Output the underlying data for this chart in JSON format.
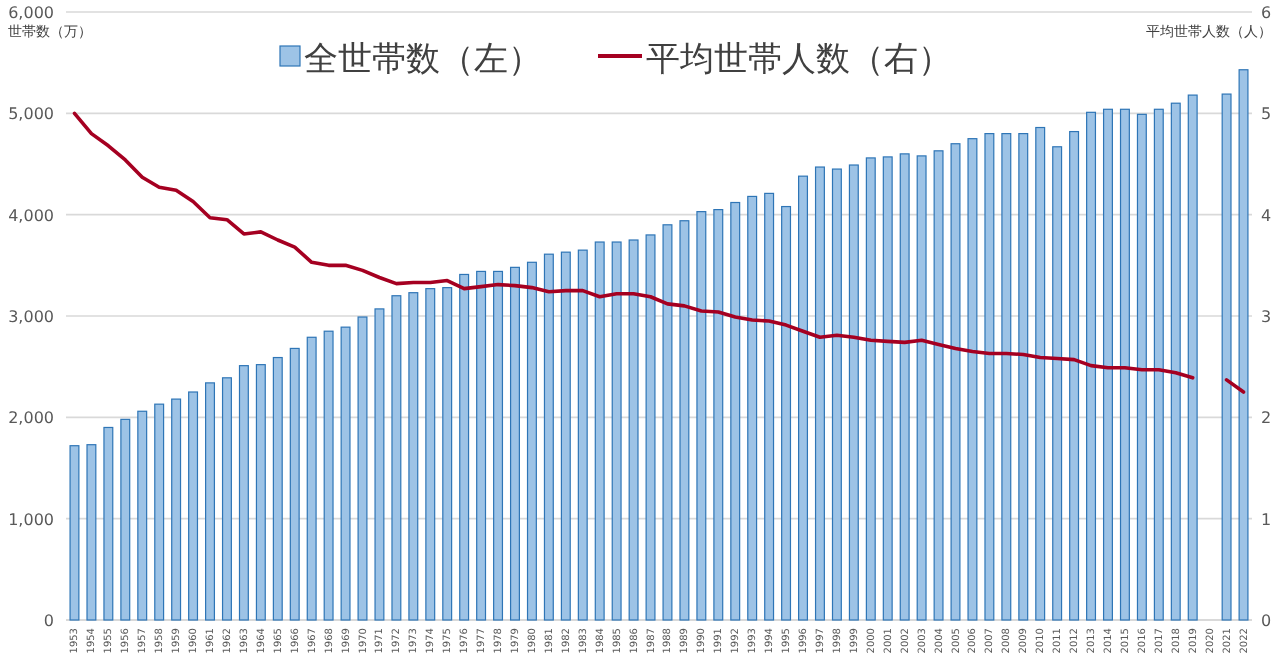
{
  "chart_data": {
    "type": "bar",
    "ylabel": "世帯数（万）",
    "y2label": "平均世帯人数（人）",
    "categories": [
      "1953",
      "1954",
      "1955",
      "1956",
      "1957",
      "1958",
      "1959",
      "1960",
      "1961",
      "1962",
      "1963",
      "1964",
      "1965",
      "1966",
      "1967",
      "1968",
      "1969",
      "1970",
      "1971",
      "1972",
      "1973",
      "1974",
      "1975",
      "1976",
      "1977",
      "1978",
      "1979",
      "1980",
      "1981",
      "1982",
      "1983",
      "1984",
      "1985",
      "1986",
      "1987",
      "1988",
      "1989",
      "1990",
      "1991",
      "1992",
      "1993",
      "1994",
      "1995",
      "1996",
      "1997",
      "1998",
      "1999",
      "2000",
      "2001",
      "2002",
      "2003",
      "2004",
      "2005",
      "2006",
      "2007",
      "2008",
      "2009",
      "2010",
      "2011",
      "2012",
      "2013",
      "2014",
      "2015",
      "2016",
      "2017",
      "2018",
      "2019",
      "2020",
      "2021",
      "2022"
    ],
    "series": [
      {
        "name": "全世帯数（左）",
        "color": "#9dc3e6",
        "values": [
          1720,
          1730,
          1900,
          1980,
          2060,
          2130,
          2180,
          2250,
          2340,
          2390,
          2510,
          2520,
          2590,
          2680,
          2790,
          2850,
          2890,
          2990,
          3070,
          3200,
          3230,
          3270,
          3280,
          3410,
          3440,
          3440,
          3480,
          3530,
          3610,
          3630,
          3650,
          3730,
          3730,
          3750,
          3800,
          3900,
          3940,
          4030,
          4050,
          4120,
          4180,
          4210,
          4080,
          4380,
          4470,
          4450,
          4490,
          4560,
          4570,
          4600,
          4580,
          4630,
          4700,
          4750,
          4800,
          4800,
          4800,
          4860,
          4670,
          4820,
          5010,
          5040,
          5040,
          4990,
          5040,
          5100,
          5180,
          null,
          5190,
          5430
        ]
      },
      {
        "name": "平均世帯人数（右）",
        "type": "line",
        "axis": "y2",
        "color": "#a50021",
        "values": [
          5.0,
          4.8,
          4.68,
          4.54,
          4.37,
          4.27,
          4.24,
          4.13,
          3.97,
          3.95,
          3.81,
          3.83,
          3.75,
          3.68,
          3.53,
          3.5,
          3.5,
          3.45,
          3.38,
          3.32,
          3.33,
          3.33,
          3.35,
          3.27,
          3.29,
          3.31,
          3.3,
          3.28,
          3.24,
          3.25,
          3.25,
          3.19,
          3.22,
          3.22,
          3.19,
          3.12,
          3.1,
          3.05,
          3.04,
          2.99,
          2.96,
          2.95,
          2.91,
          2.85,
          2.79,
          2.81,
          2.79,
          2.76,
          2.75,
          2.74,
          2.76,
          2.72,
          2.68,
          2.65,
          2.63,
          2.63,
          2.62,
          2.59,
          2.58,
          2.57,
          2.51,
          2.49,
          2.49,
          2.47,
          2.47,
          2.44,
          2.39,
          null,
          2.37,
          2.25
        ]
      }
    ],
    "ylim": [
      0,
      6000
    ],
    "yticks": [
      0,
      {
        "value": 1000,
        "label": "1,000"
      },
      {
        "value": 2000,
        "label": "2,000"
      },
      {
        "value": 3000,
        "label": "3,000"
      },
      {
        "value": 4000,
        "label": "4,000"
      },
      {
        "value": 5000,
        "label": "5,000"
      },
      {
        "value": 6000,
        "label": "6,000"
      }
    ],
    "y2lim": [
      0,
      6
    ],
    "y2ticks": [
      0,
      1,
      2,
      3,
      4,
      5,
      6
    ],
    "grid": "y",
    "legend": "top"
  }
}
